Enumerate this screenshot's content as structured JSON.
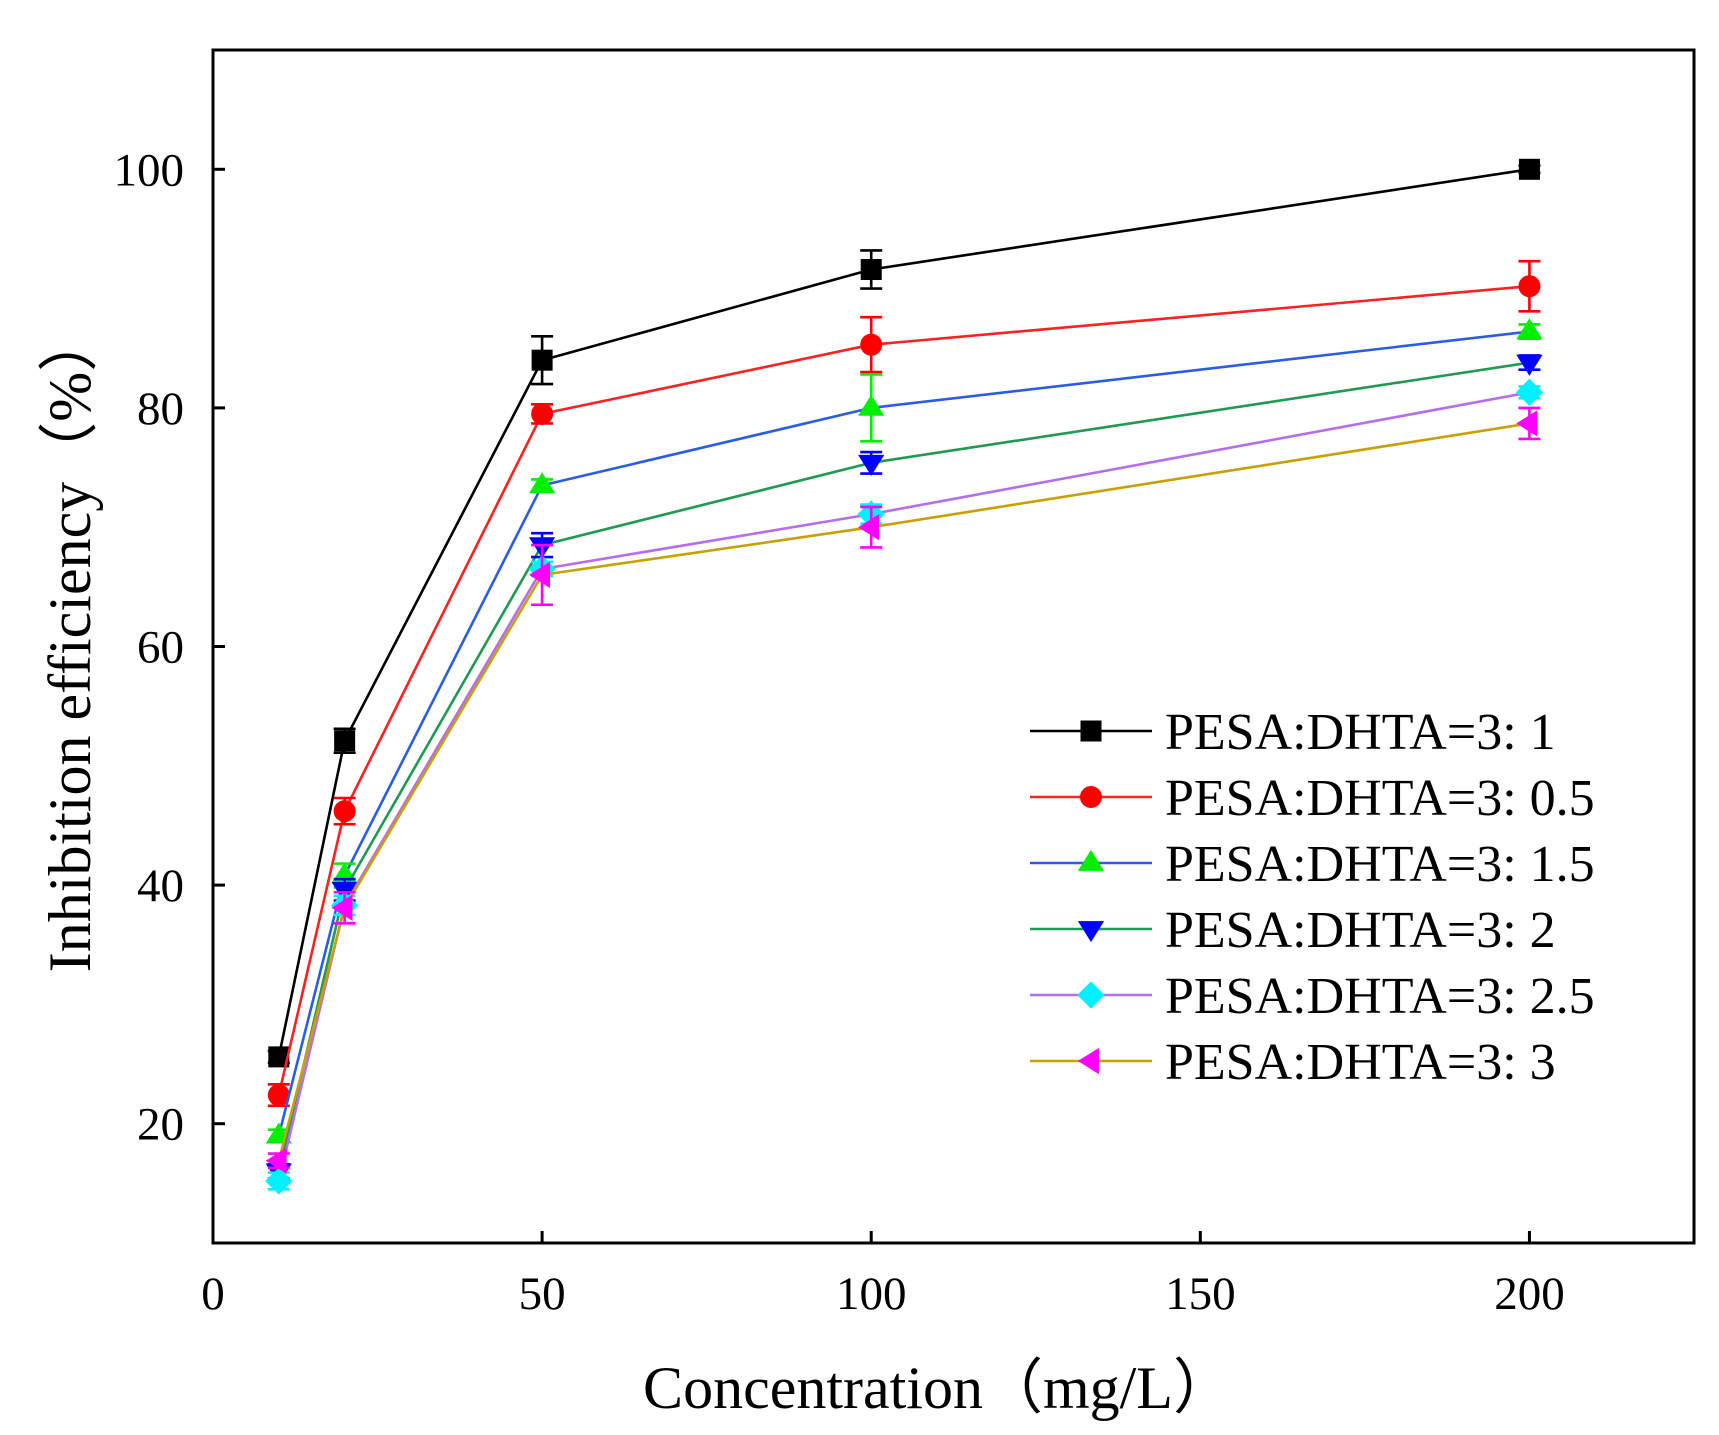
{
  "chart_data": {
    "type": "line",
    "title": "",
    "xlabel": "Concentration（mg/L）",
    "ylabel": "Inhibition efficiency（%）",
    "xlim": [
      0,
      225
    ],
    "ylim": [
      10,
      110
    ],
    "xticks": [
      0,
      50,
      100,
      150,
      200
    ],
    "yticks": [
      20,
      40,
      60,
      80,
      100
    ],
    "grid": false,
    "legend_position": "bottom-right",
    "x": [
      10,
      20,
      50,
      100,
      200
    ],
    "series": [
      {
        "name": "PESA:DHTA=3: 1",
        "marker": "square",
        "line_color": "#000000",
        "marker_color": "#000000",
        "values": [
          25.6,
          52.1,
          84.0,
          91.6,
          100.0
        ],
        "errors": [
          0.5,
          1.0,
          2.0,
          1.6,
          0.3
        ]
      },
      {
        "name": "PESA:DHTA=3: 0.5",
        "marker": "circle",
        "line_color": "#ff2020",
        "marker_color": "#ff0000",
        "values": [
          22.4,
          46.2,
          79.5,
          85.3,
          90.2
        ],
        "errors": [
          0.9,
          1.1,
          0.8,
          2.3,
          2.1
        ]
      },
      {
        "name": "PESA:DHTA=3: 1.5",
        "marker": "triangle-up",
        "line_color": "#2a5ce8",
        "marker_color": "#00ee00",
        "values": [
          19.0,
          40.8,
          73.5,
          80.0,
          86.4
        ],
        "errors": [
          0.5,
          1.0,
          0.5,
          2.8,
          0.6
        ]
      },
      {
        "name": "PESA:DHTA=3: 2",
        "marker": "triangle-down",
        "line_color": "#1f9a52",
        "marker_color": "#0000ff",
        "values": [
          16.0,
          39.6,
          68.5,
          75.4,
          83.8
        ],
        "errors": [
          0.6,
          0.9,
          1.0,
          0.9,
          0.6
        ]
      },
      {
        "name": "PESA:DHTA=3: 2.5",
        "marker": "diamond",
        "line_color": "#b46ef0",
        "marker_color": "#00f0ff",
        "values": [
          15.2,
          38.3,
          66.5,
          71.1,
          81.3
        ],
        "errors": [
          0.7,
          0.8,
          0.6,
          0.8,
          0.5
        ]
      },
      {
        "name": "PESA:DHTA=3: 3",
        "marker": "triangle-left",
        "line_color": "#c9a000",
        "marker_color": "#ff00ff",
        "values": [
          16.9,
          38.1,
          66.0,
          70.0,
          78.7
        ],
        "errors": [
          0.6,
          1.3,
          2.5,
          1.7,
          1.3
        ]
      }
    ]
  }
}
